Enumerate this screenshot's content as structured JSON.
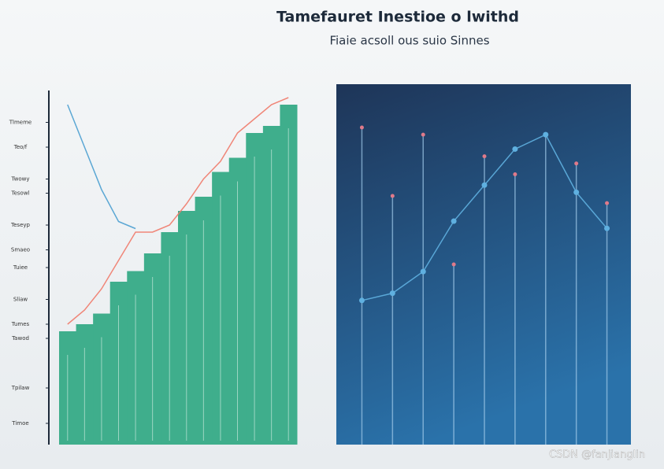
{
  "watermark": "CSDN @fanjianglin",
  "chart_data": [
    {
      "type": "bar",
      "title": "Tamefauret Inestioe o lwithd",
      "subtitle": "Fiaie acsoll ous suio Sinnes",
      "categories": [
        null,
        null,
        null,
        null,
        null,
        null,
        null,
        null,
        null,
        null,
        null,
        null,
        null,
        null
      ],
      "values": [
        32,
        34,
        37,
        46,
        49,
        54,
        60,
        66,
        70,
        77,
        81,
        88,
        90,
        96
      ],
      "color": "#3fae8c",
      "lines": [
        {
          "color": "#f07a6a",
          "values": [
            34,
            38,
            44,
            52,
            60,
            60,
            62,
            68,
            75,
            80,
            88,
            92,
            96,
            98
          ]
        },
        {
          "color": "#4a9fd0",
          "values": [
            96,
            84,
            72,
            63,
            61,
            null,
            null,
            null,
            null,
            null,
            null,
            null,
            null,
            null
          ]
        }
      ],
      "ylim": [
        0,
        100
      ],
      "yticks": [
        {
          "value": 91,
          "label": "Tlmeme"
        },
        {
          "value": 84,
          "label": "Teo/f"
        },
        {
          "value": 75,
          "label": "Twowy"
        },
        {
          "value": 71,
          "label": "Tesowl"
        },
        {
          "value": 62,
          "label": "Teseyp"
        },
        {
          "value": 55,
          "label": "Smaeo"
        },
        {
          "value": 50,
          "label": "Tuiee"
        },
        {
          "value": 41,
          "label": "Sliaw"
        },
        {
          "value": 34,
          "label": "Tumes"
        },
        {
          "value": 30,
          "label": "Tawod"
        },
        {
          "value": 16,
          "label": "Tpilaw"
        },
        {
          "value": 6,
          "label": "Timoe"
        }
      ]
    },
    {
      "type": "stem",
      "categories": [
        null,
        null,
        null,
        null,
        null,
        null,
        null,
        null,
        null
      ],
      "values": [
        88,
        69,
        86,
        50,
        80,
        75,
        86,
        78,
        67
      ],
      "color": "#9ec8e8",
      "lines": [
        {
          "color": "#5fb0e0",
          "values": [
            40,
            42,
            48,
            62,
            72,
            82,
            86,
            70,
            60
          ]
        }
      ],
      "ylim": [
        0,
        100
      ]
    }
  ]
}
